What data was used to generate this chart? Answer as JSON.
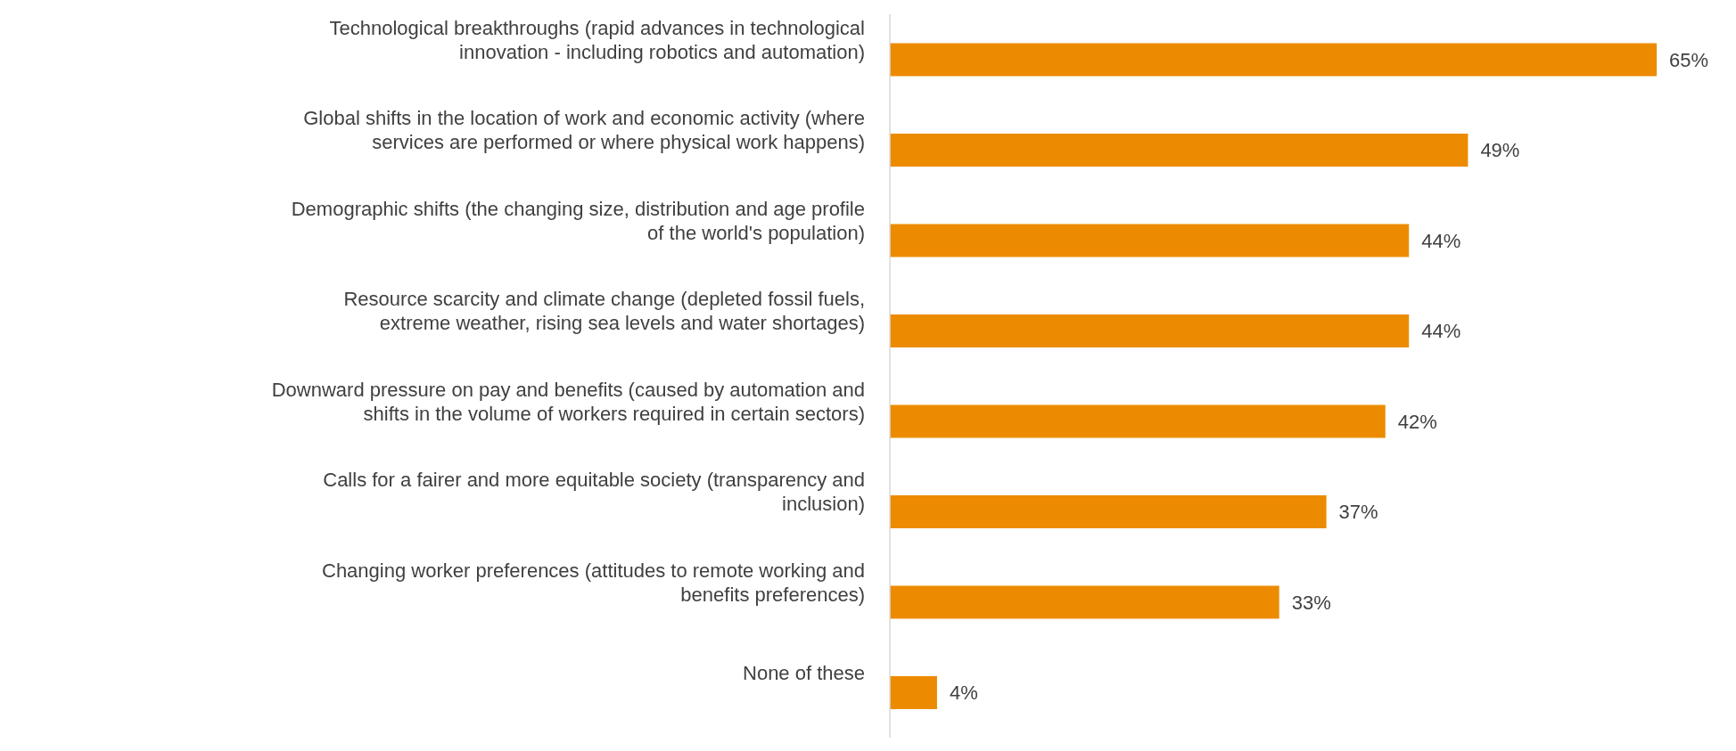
{
  "chart_data": {
    "type": "bar",
    "orientation": "horizontal",
    "categories": [
      "Technological breakthroughs (rapid advances in technological innovation - including robotics and automation)",
      "Global shifts in the location of work and economic activity (where services are performed or where physical work happens)",
      "Demographic shifts (the changing size, distribution and age profile of the world's population)",
      "Resource scarcity and climate change (depleted fossil fuels, extreme weather, rising sea levels and water shortages)",
      "Downward pressure on pay and benefits (caused by automation and shifts in the volume of workers required in certain sectors)",
      "Calls for a fairer and more equitable society (transparency and inclusion)",
      "Changing worker preferences (attitudes to remote working and benefits preferences)",
      "None of these"
    ],
    "values": [
      65,
      49,
      44,
      44,
      42,
      37,
      33,
      4
    ],
    "value_labels": [
      "65%",
      "49%",
      "44%",
      "44%",
      "42%",
      "37%",
      "33%",
      "4%"
    ],
    "color": "#ed8b00"
  }
}
